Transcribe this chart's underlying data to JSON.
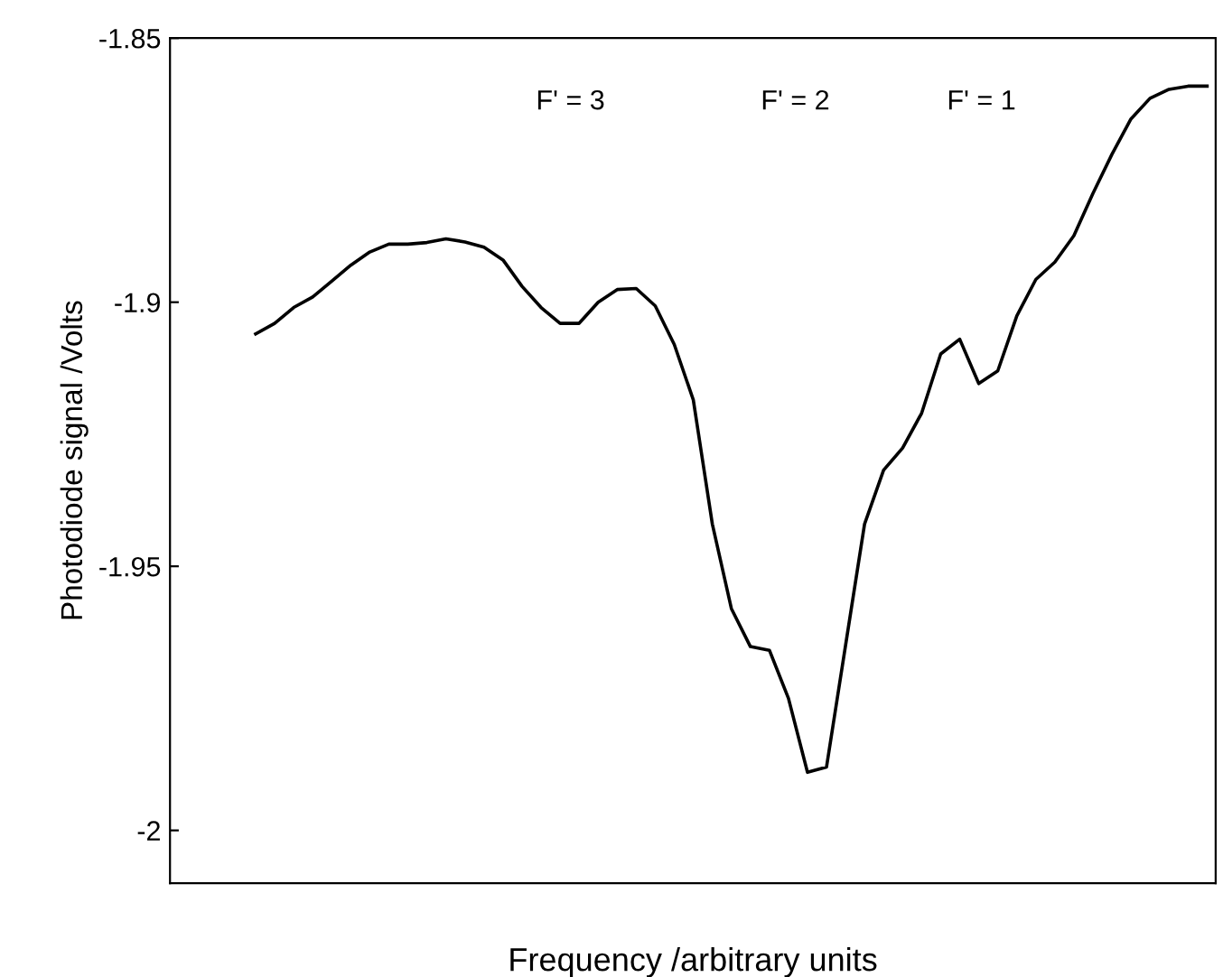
{
  "chart_data": {
    "type": "line",
    "xlabel": "Frequency /arbitrary units",
    "ylabel": "Photodiode signal /Volts",
    "categories": [
      null,
      null,
      null,
      null,
      null,
      null,
      null,
      null,
      null,
      null,
      null,
      null,
      null,
      null,
      null,
      null,
      null,
      null,
      null,
      null,
      null,
      null,
      null,
      null,
      null,
      null,
      null,
      null,
      null,
      null,
      null,
      null,
      null,
      null,
      null,
      null,
      null,
      null,
      null,
      null,
      null,
      null,
      null,
      null,
      null,
      null,
      null,
      null,
      null,
      null,
      null
    ],
    "series": [
      {
        "color": "#000000",
        "values": [
          -1.906,
          -1.904,
          -1.901,
          -1.899,
          -1.896,
          -1.893,
          -1.8905,
          -1.889,
          -1.889,
          -1.8887,
          -1.888,
          -1.8886,
          -1.8896,
          -1.892,
          -1.897,
          -1.901,
          -1.904,
          -1.904,
          -1.9,
          -1.8976,
          -1.8974,
          -1.9007,
          -1.908,
          -1.9185,
          -1.942,
          -1.958,
          -1.9652,
          -1.9659,
          -1.975,
          -1.989,
          -1.988,
          -1.965,
          -1.942,
          -1.9318,
          -1.9276,
          -1.921,
          -1.9098,
          -1.907,
          -1.9154,
          -1.913,
          -1.9026,
          -1.8957,
          -1.8924,
          -1.8874,
          -1.8794,
          -1.872,
          -1.8653,
          -1.8614,
          -1.8597,
          -1.8591,
          -1.8591
        ]
      }
    ],
    "ylim": [
      -2.01,
      -1.85
    ],
    "yticks": [
      -2,
      -1.95,
      -1.9,
      -1.85
    ],
    "grid": false,
    "line_style": "solid",
    "marker": "none",
    "annotations": [
      "F' = 3",
      "F' = 2",
      "F' = 1"
    ]
  }
}
